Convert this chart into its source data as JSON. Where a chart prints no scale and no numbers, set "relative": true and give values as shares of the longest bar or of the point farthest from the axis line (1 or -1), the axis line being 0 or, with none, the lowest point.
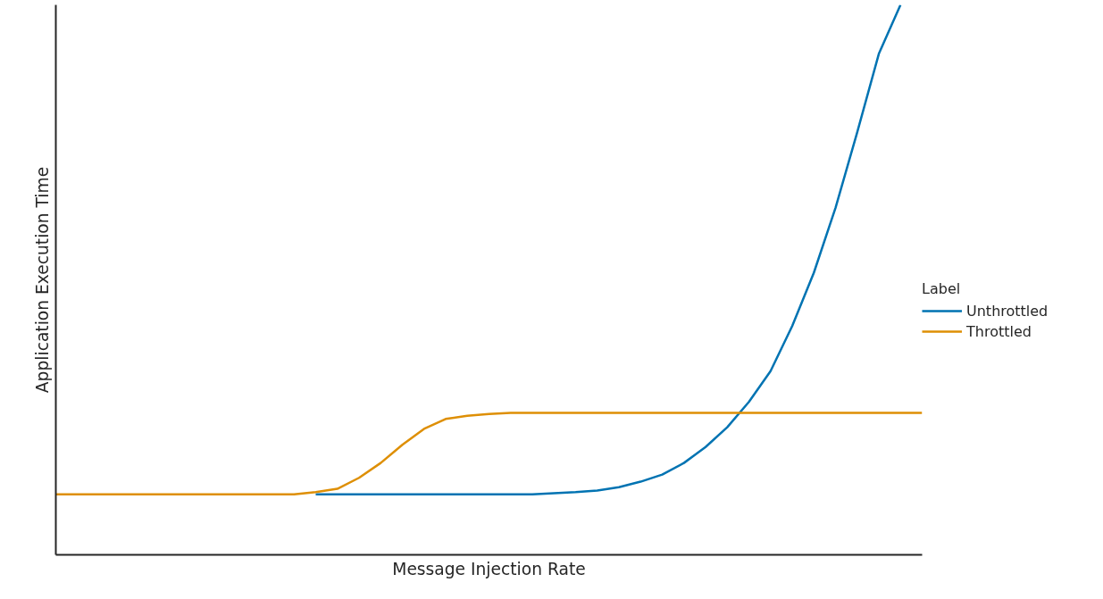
{
  "chart_data": {
    "type": "line",
    "relative": true,
    "xlabel": "Message Injection Rate",
    "ylabel": "Application Execution Time",
    "legend_title": "Label",
    "legend": "right",
    "marker": "none",
    "line_style": "solid",
    "categories": [
      null,
      null,
      null,
      null,
      null,
      null,
      null,
      null,
      null,
      null,
      null,
      null,
      null,
      null,
      null,
      null,
      null,
      null,
      null,
      null,
      null,
      null,
      null,
      null,
      null,
      null,
      null,
      null,
      null,
      null,
      null,
      null,
      null,
      null,
      null,
      null,
      null,
      null,
      null,
      null,
      null
    ],
    "series": [
      {
        "name": "Unthrottled",
        "color": "#0173b2",
        "values": [
          null,
          null,
          null,
          null,
          null,
          null,
          null,
          null,
          null,
          null,
          null,
          null,
          0.11,
          0.11,
          0.11,
          0.11,
          0.11,
          0.11,
          0.11,
          0.11,
          0.11,
          0.11,
          0.11,
          0.112,
          0.114,
          0.117,
          0.123,
          0.133,
          0.146,
          0.167,
          0.196,
          0.232,
          0.278,
          0.334,
          0.416,
          0.513,
          0.631,
          0.768,
          0.911,
          1.0,
          null
        ]
      },
      {
        "name": "Throttled",
        "color": "#de8f05",
        "values": [
          0.11,
          0.11,
          0.11,
          0.11,
          0.11,
          0.11,
          0.11,
          0.11,
          0.11,
          0.11,
          0.11,
          0.11,
          0.114,
          0.12,
          0.14,
          0.167,
          0.2,
          0.229,
          0.247,
          0.253,
          0.256,
          0.258,
          0.258,
          0.258,
          0.258,
          0.258,
          0.258,
          0.258,
          0.258,
          0.258,
          0.258,
          0.258,
          0.258,
          0.258,
          0.258,
          0.258,
          0.258,
          0.258,
          0.258,
          0.258,
          0.258
        ]
      }
    ]
  }
}
